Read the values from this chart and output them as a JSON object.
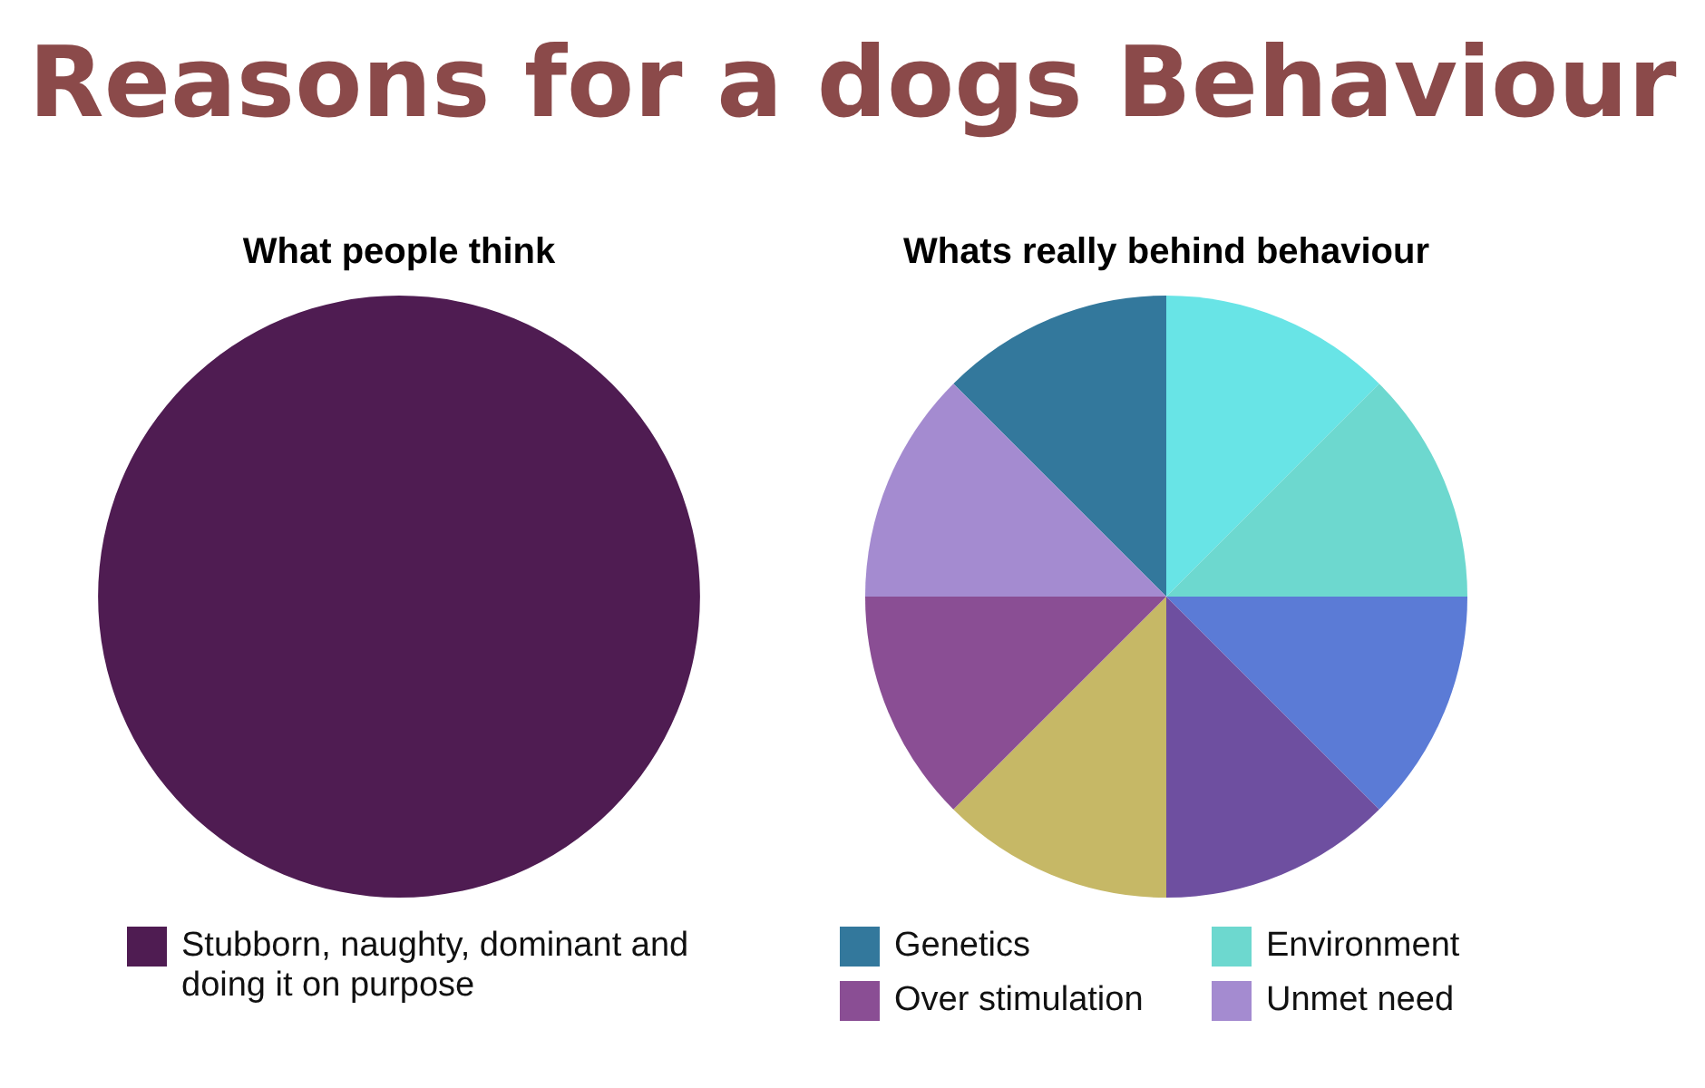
{
  "chart_data": [
    {
      "type": "pie",
      "title": "What people think",
      "annotations": [
        "Reasons for a dogs Behaviour"
      ],
      "categories": [
        "Stubborn, naughty, dominant and doing it on purpose"
      ],
      "values": [
        100
      ],
      "colors": [
        "#4f1c52"
      ],
      "legend": "bottom"
    },
    {
      "type": "pie",
      "title": "Whats really behind behaviour",
      "categories": [
        "Genetics",
        null,
        "Environment",
        null,
        null,
        null,
        "Over stimulation",
        "Unmet need"
      ],
      "values": [
        12.5,
        12.5,
        12.5,
        12.5,
        12.5,
        12.5,
        12.5,
        12.5
      ],
      "colors": [
        "#33789c",
        "#68e4e6",
        "#6dd8cf",
        "#5b7bd6",
        "#6e4fa0",
        "#c6b866",
        "#8a4e94",
        "#a48bd0"
      ],
      "legend": "bottom"
    }
  ]
}
